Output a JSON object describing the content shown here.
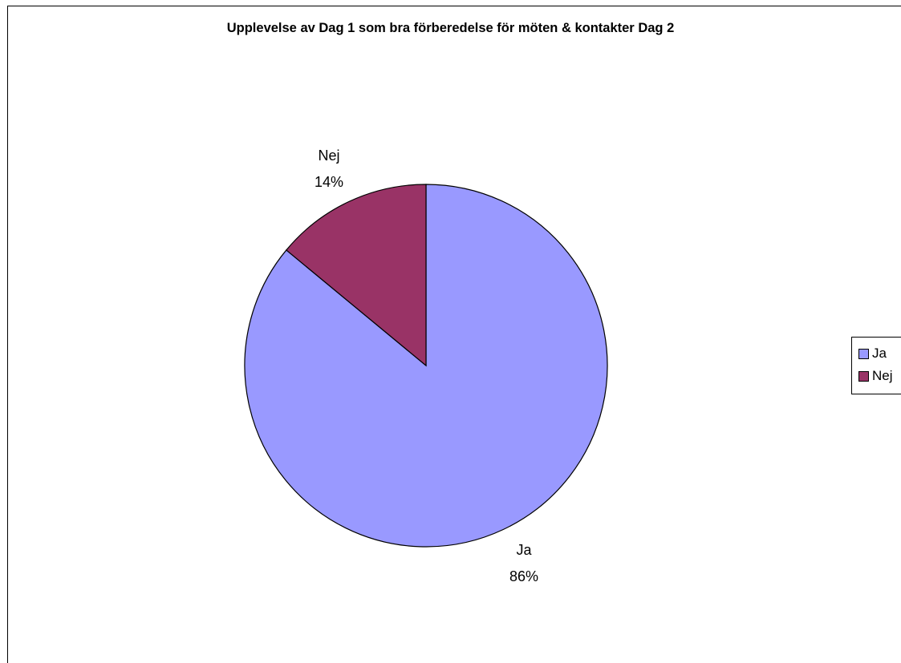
{
  "chart_data": {
    "type": "pie",
    "title": "Upplevelse av Dag 1 som bra förberedelse för möten & kontakter Dag 2",
    "categories": [
      "Ja",
      "Nej"
    ],
    "values": [
      86,
      14
    ],
    "labels": [
      "86%",
      "14%"
    ],
    "colors": [
      "#9999ff",
      "#993366"
    ],
    "legend": {
      "placement": "right",
      "items": [
        "Ja",
        "Nej"
      ]
    }
  }
}
